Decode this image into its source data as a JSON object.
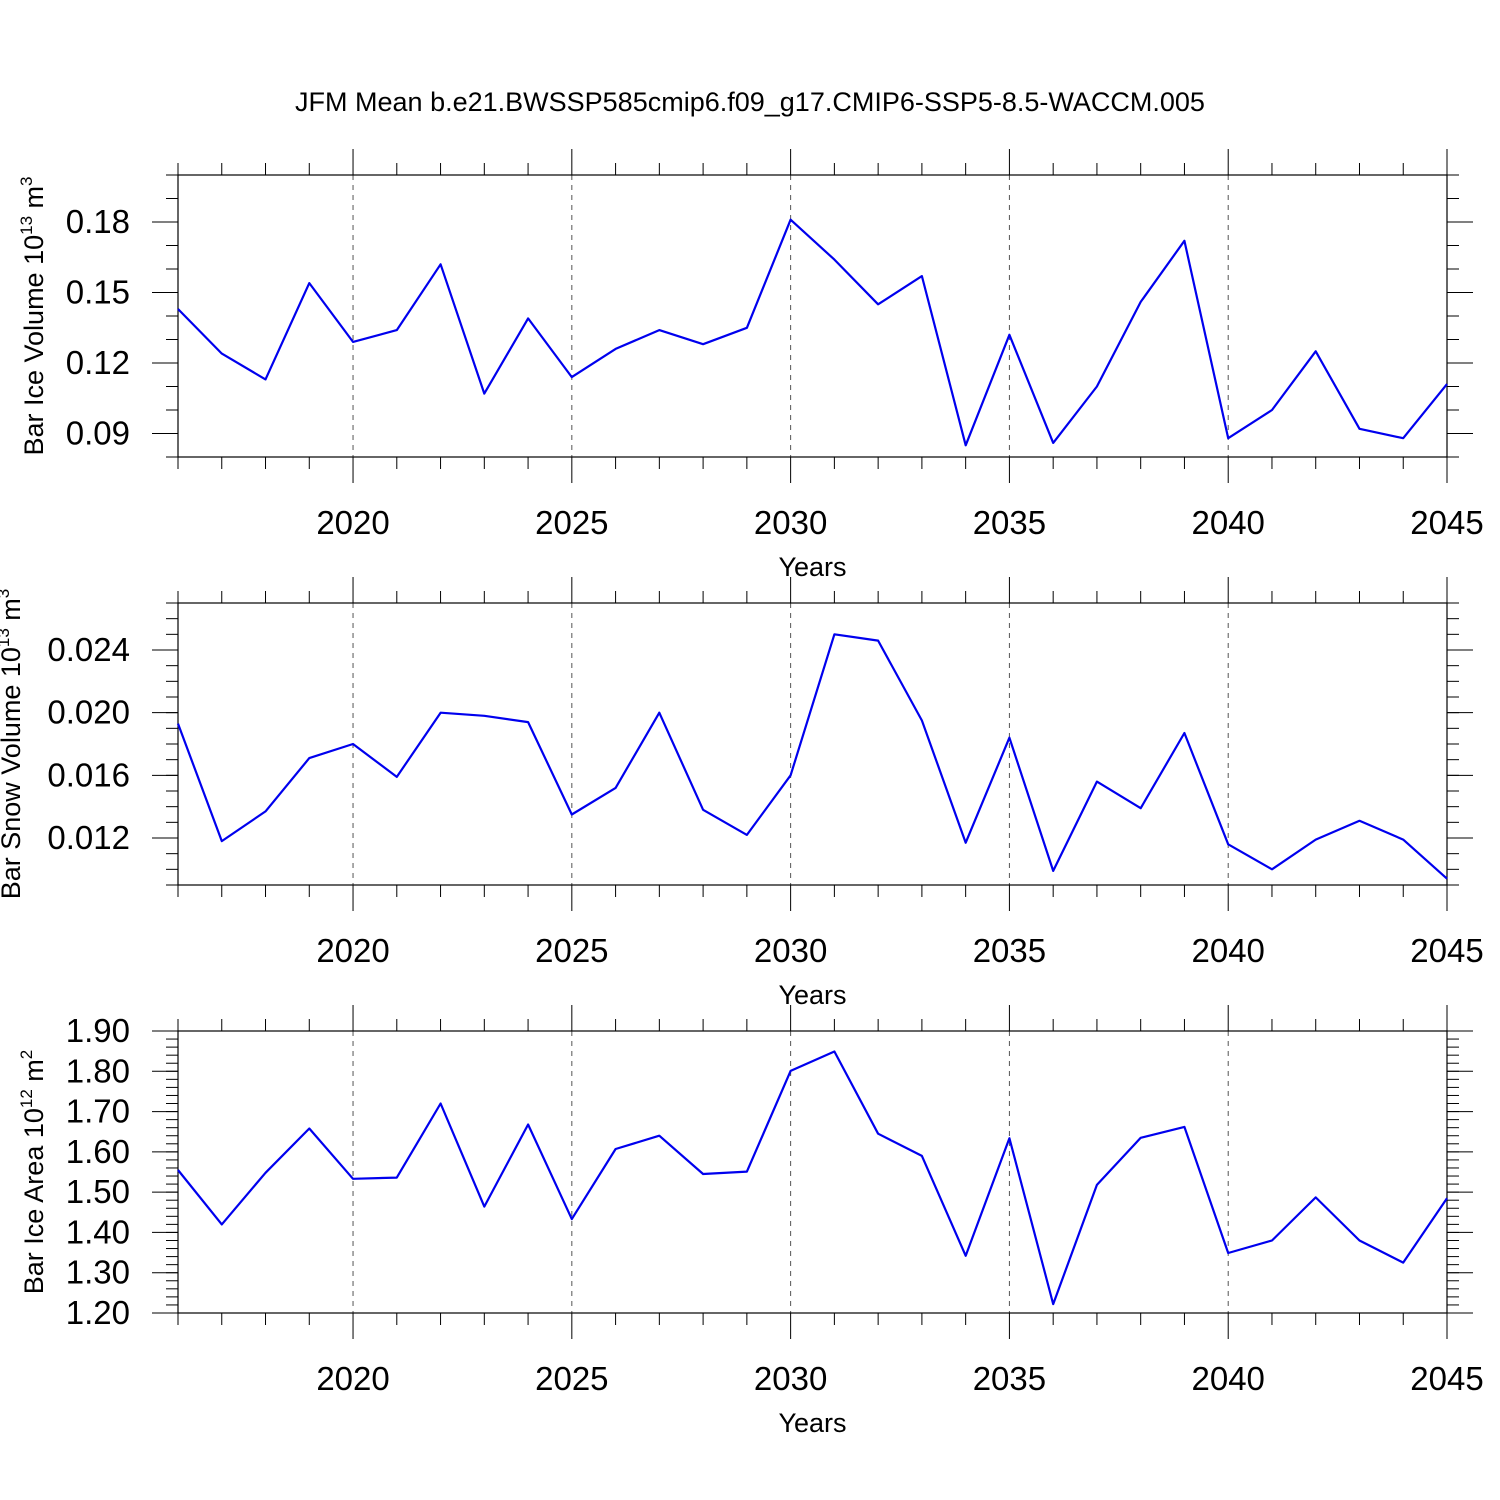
{
  "title": "JFM Mean b.e21.BWSSP585cmip6.f09_g17.CMIP6-SSP5-8.5-WACCM.005",
  "line_color": "#0000ee",
  "chart_data": [
    {
      "type": "line",
      "name": "bar-ice-volume",
      "ylabel": "Bar Ice Volume 10",
      "ylabel_exp1": "13",
      "ylabel_unit": "m",
      "ylabel_exp2": "3",
      "xlabel": "Years",
      "xlim": [
        2016,
        2045
      ],
      "ylim": [
        0.08,
        0.2
      ],
      "xticks": [
        "2020",
        "2025",
        "2030",
        "2035",
        "2040",
        "2045"
      ],
      "yticks": [
        "0.09",
        "0.12",
        "0.15",
        "0.18"
      ],
      "grid": "vertical dashed at major years",
      "x": [
        2016,
        2017,
        2018,
        2019,
        2020,
        2021,
        2022,
        2023,
        2024,
        2025,
        2026,
        2027,
        2028,
        2029,
        2030,
        2031,
        2032,
        2033,
        2034,
        2035,
        2036,
        2037,
        2038,
        2039,
        2040,
        2041,
        2042,
        2043,
        2044,
        2045
      ],
      "values": [
        0.143,
        0.124,
        0.113,
        0.154,
        0.129,
        0.134,
        0.162,
        0.107,
        0.139,
        0.114,
        0.126,
        0.134,
        0.128,
        0.135,
        0.181,
        0.164,
        0.145,
        0.157,
        0.085,
        0.132,
        0.086,
        0.11,
        0.146,
        0.172,
        0.088,
        0.1,
        0.125,
        0.092,
        0.088,
        0.111
      ]
    },
    {
      "type": "line",
      "name": "bar-snow-volume",
      "ylabel": "Bar Snow Volume 10",
      "ylabel_exp1": "13",
      "ylabel_unit": "m",
      "ylabel_exp2": "3",
      "xlabel": "Years",
      "xlim": [
        2016,
        2045
      ],
      "ylim": [
        0.009,
        0.027
      ],
      "xticks": [
        "2020",
        "2025",
        "2030",
        "2035",
        "2040",
        "2045"
      ],
      "yticks": [
        "0.012",
        "0.016",
        "0.020",
        "0.024"
      ],
      "grid": "vertical dashed at major years",
      "x": [
        2016,
        2017,
        2018,
        2019,
        2020,
        2021,
        2022,
        2023,
        2024,
        2025,
        2026,
        2027,
        2028,
        2029,
        2030,
        2031,
        2032,
        2033,
        2034,
        2035,
        2036,
        2037,
        2038,
        2039,
        2040,
        2041,
        2042,
        2043,
        2044,
        2045
      ],
      "values": [
        0.0193,
        0.0118,
        0.0137,
        0.0171,
        0.018,
        0.0159,
        0.02,
        0.0198,
        0.0194,
        0.0135,
        0.0152,
        0.02,
        0.0138,
        0.0122,
        0.016,
        0.025,
        0.0246,
        0.0195,
        0.0117,
        0.0184,
        0.0099,
        0.0156,
        0.0139,
        0.0187,
        0.0116,
        0.01,
        0.0119,
        0.0131,
        0.0119,
        0.0094
      ]
    },
    {
      "type": "line",
      "name": "bar-ice-area",
      "ylabel": "Bar Ice Area 10",
      "ylabel_exp1": "12",
      "ylabel_unit": "m",
      "ylabel_exp2": "2",
      "xlabel": "Years",
      "xlim": [
        2016,
        2045
      ],
      "ylim": [
        1.2,
        1.9
      ],
      "xticks": [
        "2020",
        "2025",
        "2030",
        "2035",
        "2040",
        "2045"
      ],
      "yticks": [
        "1.20",
        "1.30",
        "1.40",
        "1.50",
        "1.60",
        "1.70",
        "1.80",
        "1.90"
      ],
      "grid": "vertical dashed at major years",
      "x": [
        2016,
        2017,
        2018,
        2019,
        2020,
        2021,
        2022,
        2023,
        2024,
        2025,
        2026,
        2027,
        2028,
        2029,
        2030,
        2031,
        2032,
        2033,
        2034,
        2035,
        2036,
        2037,
        2038,
        2039,
        2040,
        2041,
        2042,
        2043,
        2044,
        2045
      ],
      "values": [
        1.555,
        1.42,
        1.548,
        1.658,
        1.533,
        1.536,
        1.72,
        1.464,
        1.668,
        1.433,
        1.607,
        1.64,
        1.545,
        1.551,
        1.801,
        1.849,
        1.645,
        1.59,
        1.342,
        1.634,
        1.222,
        1.518,
        1.635,
        1.662,
        1.349,
        1.38,
        1.487,
        1.38,
        1.325,
        1.485
      ]
    }
  ]
}
